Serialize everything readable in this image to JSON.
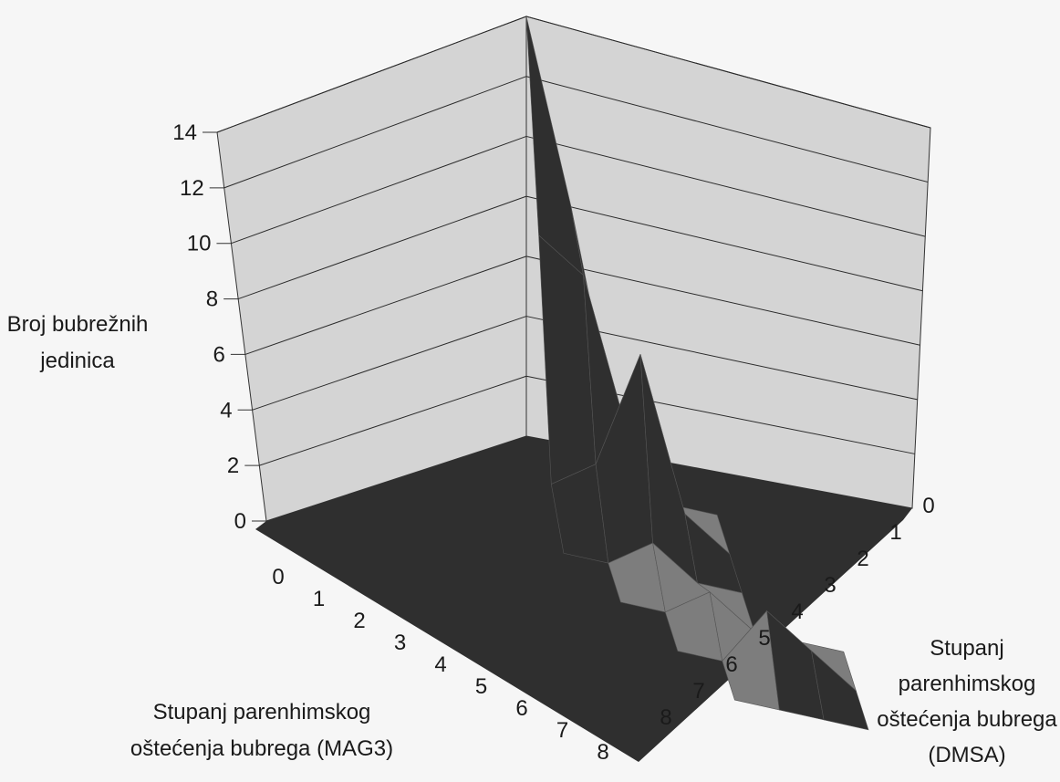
{
  "chart_data": {
    "type": "surface3d",
    "zlabel_lines": [
      "Broj bubrežnih",
      "jedinica"
    ],
    "xlabel_lines": [
      "Stupanj parenhimskog",
      "oštećenja bubrega (MAG3)"
    ],
    "ylabel_lines": [
      "Stupanj",
      "parenhimskog",
      "oštećenja bubrega",
      "(DMSA)"
    ],
    "z_ticks": [
      "0",
      "2",
      "4",
      "6",
      "8",
      "10",
      "12",
      "14"
    ],
    "zlim": [
      0,
      14
    ],
    "x_ticks": [
      "0",
      "1",
      "2",
      "3",
      "4",
      "5",
      "6",
      "7",
      "8"
    ],
    "y_ticks": [
      "0",
      "1",
      "2",
      "3",
      "4",
      "5",
      "6",
      "7",
      "8"
    ],
    "grid": true,
    "values": [
      [
        14,
        8,
        1,
        0,
        0,
        0,
        0,
        0,
        0
      ],
      [
        8,
        7,
        2,
        0,
        0,
        0,
        0,
        0,
        0
      ],
      [
        1,
        2,
        6,
        1,
        0,
        0,
        0,
        0,
        0
      ],
      [
        0,
        0,
        1,
        0,
        0,
        0,
        0,
        0,
        0
      ],
      [
        0,
        0,
        0,
        1,
        0,
        0,
        0,
        0,
        0
      ],
      [
        0,
        0,
        0,
        0,
        2,
        1,
        0,
        0,
        0
      ],
      [
        0,
        0,
        0,
        0,
        0,
        0,
        0,
        0,
        0
      ],
      [
        0,
        0,
        0,
        0,
        0,
        0,
        0,
        0,
        0
      ],
      [
        0,
        0,
        0,
        0,
        0,
        0,
        0,
        0,
        0
      ]
    ],
    "colors": {
      "wall": "#d4d4d4",
      "floor": "#2f2f2f",
      "surface_dark": "#2f2f2f",
      "surface_light": "#7d7d7d",
      "gridline": "#2b2b2b"
    }
  }
}
